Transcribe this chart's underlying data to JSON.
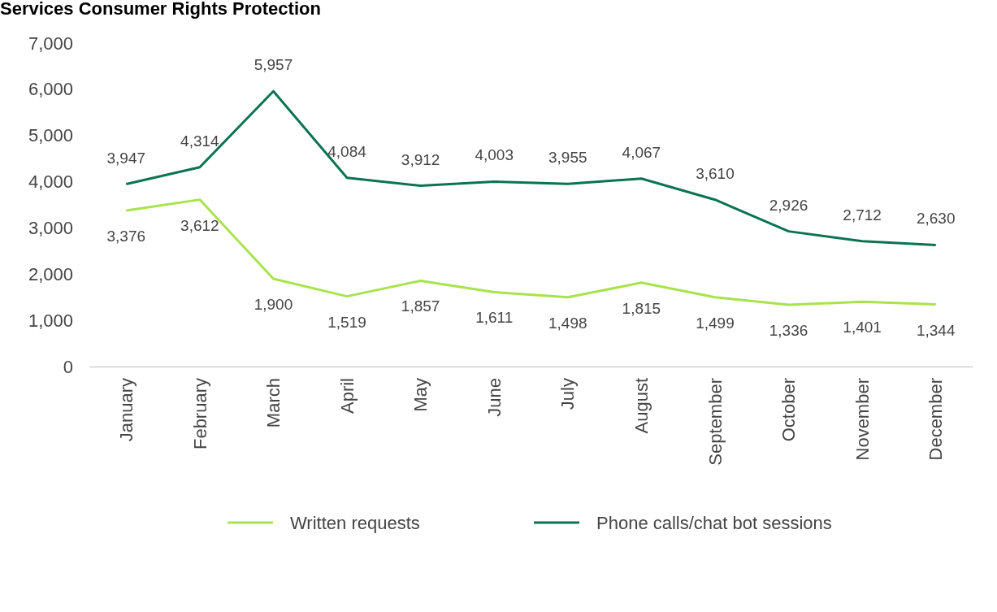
{
  "chart_data": {
    "type": "line",
    "title": "Services Consumer Rights Protection",
    "categories": [
      "January",
      "February",
      "March",
      "April",
      "May",
      "June",
      "July",
      "August",
      "September",
      "October",
      "November",
      "December"
    ],
    "series": [
      {
        "name": "Written requests",
        "color": "#a8e34e",
        "values": [
          3376,
          3612,
          1900,
          1519,
          1857,
          1611,
          1498,
          1815,
          1499,
          1336,
          1401,
          1344
        ],
        "value_labels": [
          "3,376",
          "3,612",
          "1,900",
          "1,519",
          "1,857",
          "1,611",
          "1,498",
          "1,815",
          "1,499",
          "1,336",
          "1,401",
          "1,344"
        ]
      },
      {
        "name": "Phone calls/chat bot sessions",
        "color": "#0b7352",
        "values": [
          3947,
          4314,
          5957,
          4084,
          3912,
          4003,
          3955,
          4067,
          3610,
          2926,
          2712,
          2630
        ],
        "value_labels": [
          "3,947",
          "4,314",
          "5,957",
          "4,084",
          "3,912",
          "4,003",
          "3,955",
          "4,067",
          "3,610",
          "2,926",
          "2,712",
          "2,630"
        ]
      }
    ],
    "ylim": [
      0,
      7000
    ],
    "yticks": [
      {
        "value": 0,
        "label": "0"
      },
      {
        "value": 1000,
        "label": "1,000"
      },
      {
        "value": 2000,
        "label": "2,000"
      },
      {
        "value": 3000,
        "label": "3,000"
      },
      {
        "value": 4000,
        "label": "4,000"
      },
      {
        "value": 5000,
        "label": "5,000"
      },
      {
        "value": 6000,
        "label": "6,000"
      },
      {
        "value": 7000,
        "label": "7,000"
      }
    ],
    "legend": "bottom",
    "grid": false,
    "marker": "none",
    "line_style": "solid"
  }
}
